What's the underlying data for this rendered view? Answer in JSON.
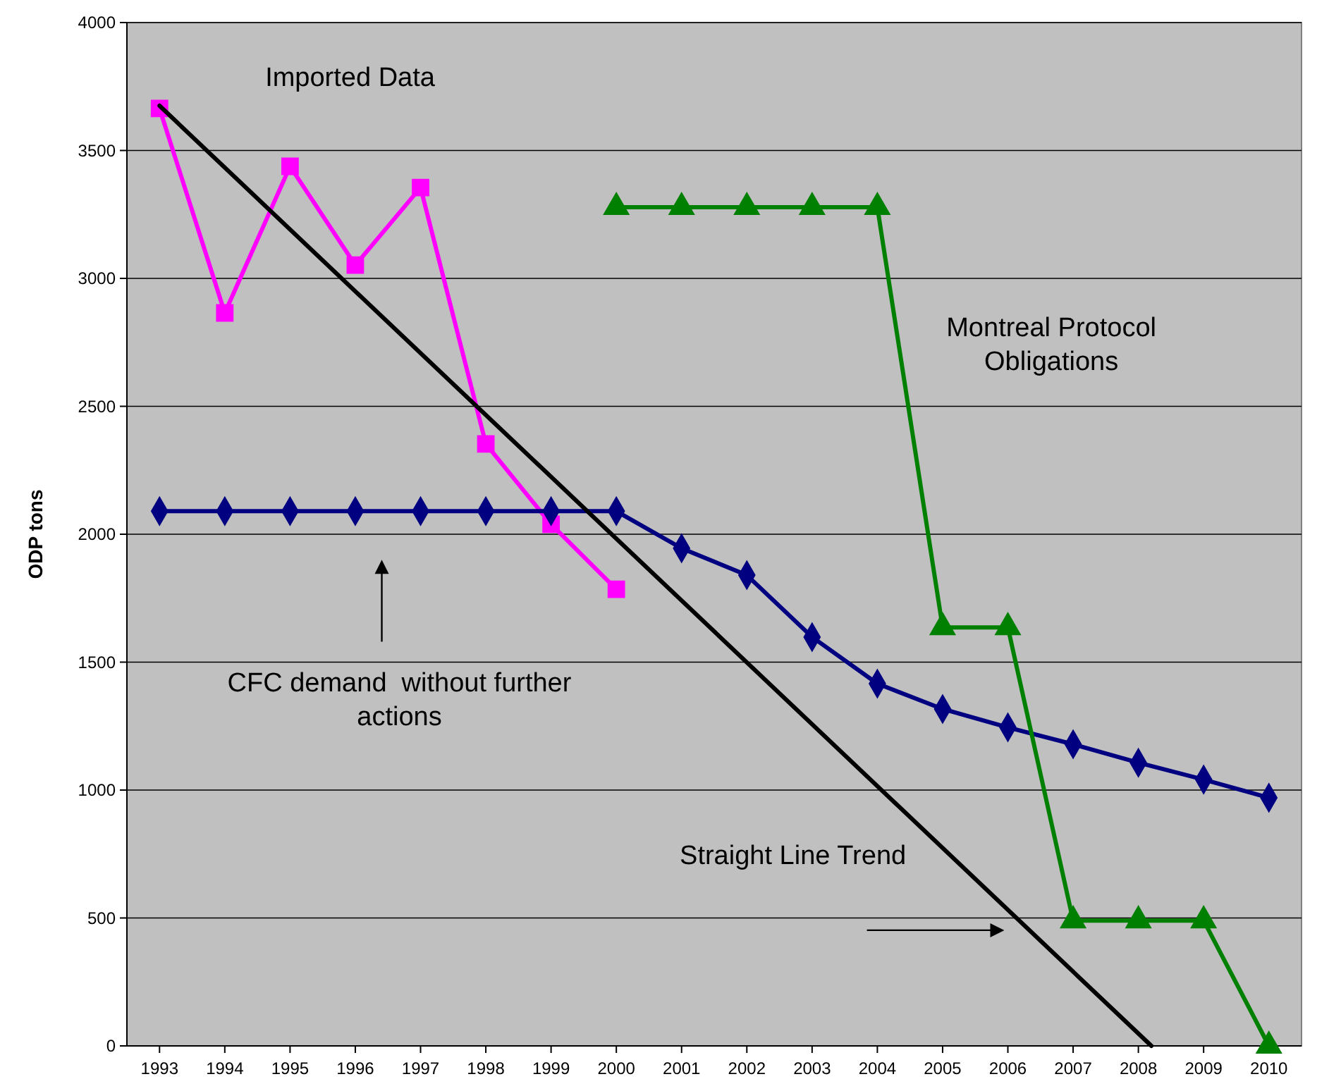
{
  "chart_data": {
    "type": "line",
    "ylabel": "ODP tons",
    "x": [
      1993,
      1994,
      1995,
      1996,
      1997,
      1998,
      1999,
      2000,
      2001,
      2002,
      2003,
      2004,
      2005,
      2006,
      2007,
      2008,
      2009,
      2010
    ],
    "xlim": [
      1992.5,
      2010.5
    ],
    "xticks": [
      1993,
      1994,
      1995,
      1996,
      1997,
      1998,
      1999,
      2000,
      2001,
      2002,
      2003,
      2004,
      2005,
      2006,
      2007,
      2008,
      2009,
      2010
    ],
    "ylim": [
      0,
      4000
    ],
    "yticks": [
      0,
      500,
      1000,
      1500,
      2000,
      2500,
      3000,
      3500,
      4000
    ],
    "grid": "y",
    "series": [
      {
        "color": "#ff00ff",
        "marker": "square",
        "x": [
          1993,
          1994,
          1995,
          1996,
          1997,
          1998,
          1999,
          2000
        ],
        "values": [
          3664,
          2865,
          3438,
          3052,
          3355,
          2353,
          2039,
          1785
        ]
      },
      {
        "color": "#000080",
        "marker": "diamond",
        "values": [
          2090,
          2090,
          2090,
          2090,
          2090,
          2090,
          2090,
          2090,
          1945,
          1840,
          1598,
          1416,
          1317,
          1245,
          1179,
          1107,
          1041,
          970
        ]
      },
      {
        "color": "#008000",
        "marker": "triangle",
        "x": [
          2000,
          2001,
          2002,
          2003,
          2004,
          2005,
          2006,
          2007,
          2008,
          2009,
          2010
        ],
        "values": [
          3278,
          3278,
          3278,
          3278,
          3278,
          1636,
          1636,
          490,
          490,
          490,
          0
        ]
      },
      {
        "color": "#000000",
        "marker": "none",
        "x": [
          1993,
          2008.2
        ],
        "values": [
          3675,
          0
        ]
      }
    ],
    "annotations": [
      "Imported Data",
      "Montreal Protocol Obligations",
      "CFC demand  without further actions",
      "Straight Line Trend"
    ]
  }
}
